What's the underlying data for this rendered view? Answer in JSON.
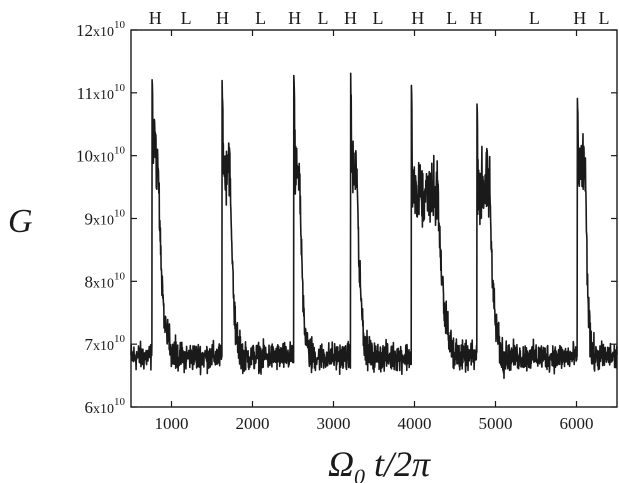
{
  "chart_data": {
    "type": "line",
    "ylabel": "G",
    "xlabel": {
      "main_prefix": "Ω",
      "subscript": "0",
      "main_suffix": " t/2π"
    },
    "xlim": [
      500,
      6500
    ],
    "ylim": [
      6,
      12
    ],
    "y_unit_label": "x10",
    "y_exponent": "10",
    "xticks": [
      1000,
      2000,
      3000,
      4000,
      5000,
      6000
    ],
    "xtick_labels": [
      "1000",
      "2000",
      "3000",
      "4000",
      "5000",
      "6000"
    ],
    "yticks": [
      6,
      7,
      8,
      9,
      10,
      11,
      12
    ],
    "ytick_labels": [
      "6",
      "7",
      "8",
      "9",
      "10",
      "11",
      "12"
    ],
    "state_labels": [
      {
        "label": "H",
        "x": 800
      },
      {
        "label": "L",
        "x": 1180
      },
      {
        "label": "H",
        "x": 1630
      },
      {
        "label": "L",
        "x": 2100
      },
      {
        "label": "H",
        "x": 2520
      },
      {
        "label": "L",
        "x": 2870
      },
      {
        "label": "H",
        "x": 3210
      },
      {
        "label": "L",
        "x": 3550
      },
      {
        "label": "H",
        "x": 4040
      },
      {
        "label": "L",
        "x": 4460
      },
      {
        "label": "H",
        "x": 4760
      },
      {
        "label": "L",
        "x": 5480
      },
      {
        "label": "H",
        "x": 6040
      },
      {
        "label": "L",
        "x": 6340
      }
    ],
    "series": [
      {
        "baseline": 6.8,
        "noise": 0.22,
        "bursts": [
          {
            "start": 760,
            "peak": 11.3,
            "plateau": 10.1,
            "plateau_len": 60,
            "decay_end": 1050
          },
          {
            "start": 1625,
            "peak": 11.15,
            "plateau": 9.8,
            "plateau_len": 90,
            "decay_end": 1880
          },
          {
            "start": 2510,
            "peak": 11.25,
            "plateau": 9.8,
            "plateau_len": 60,
            "decay_end": 2740
          },
          {
            "start": 3210,
            "peak": 11.35,
            "plateau": 9.8,
            "plateau_len": 70,
            "decay_end": 3460
          },
          {
            "start": 3960,
            "peak": 11.2,
            "plateau": 9.4,
            "plateau_len": 320,
            "decay_end": 4560
          },
          {
            "start": 4770,
            "peak": 10.95,
            "plateau": 9.5,
            "plateau_len": 150,
            "decay_end": 5120
          },
          {
            "start": 6010,
            "peak": 11.0,
            "plateau": 9.8,
            "plateau_len": 90,
            "decay_end": 6220
          }
        ],
        "color": "#1a1a1a"
      }
    ],
    "grid": false,
    "line_color": "#1a1a1a",
    "axis_color": "#1a1a1a"
  }
}
